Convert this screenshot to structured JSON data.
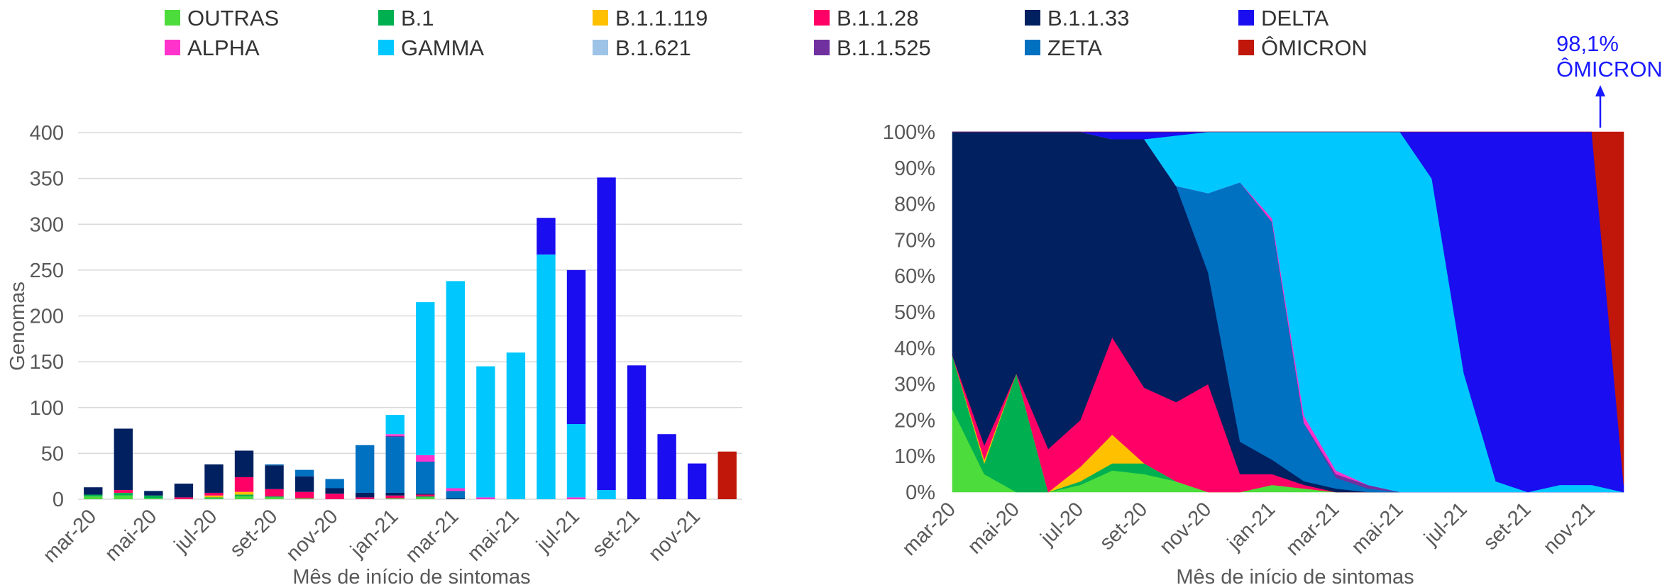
{
  "legend": [
    {
      "name": "OUTRAS",
      "color": "#4cdc3c"
    },
    {
      "name": "B.1",
      "color": "#00b050"
    },
    {
      "name": "B.1.1.119",
      "color": "#ffc000"
    },
    {
      "name": "B.1.1.28",
      "color": "#ff0066"
    },
    {
      "name": "B.1.1.33",
      "color": "#002060"
    },
    {
      "name": "DELTA",
      "color": "#1a0df0"
    },
    {
      "name": "ALPHA",
      "color": "#ff33cc"
    },
    {
      "name": "GAMMA",
      "color": "#00c8ff"
    },
    {
      "name": "B.1.621",
      "color": "#9dc3e6"
    },
    {
      "name": "B.1.1.525",
      "color": "#7030a0"
    },
    {
      "name": "ZETA",
      "color": "#0070c0"
    },
    {
      "name": "ÔMICRON",
      "color": "#c0170a"
    }
  ],
  "chart_data": [
    {
      "type": "bar",
      "stacked": true,
      "xlabel": "Mês de início de sintomas",
      "ylabel": "Genomas",
      "ylim": [
        0,
        400
      ],
      "yticks": [
        0,
        50,
        100,
        150,
        200,
        250,
        300,
        350,
        400
      ],
      "grid": true,
      "categories": [
        "mar-20",
        "abr-20",
        "mai-20",
        "jun-20",
        "jul-20",
        "ago-20",
        "set-20",
        "out-20",
        "nov-20",
        "dez-20",
        "jan-21",
        "fev-21",
        "mar-21",
        "abr-21",
        "mai-21",
        "jun-21",
        "jul-21",
        "ago-21",
        "set-21",
        "out-21",
        "nov-21",
        "dez-21"
      ],
      "xtick_labels": [
        "mar-20",
        "mai-20",
        "jul-20",
        "set-20",
        "nov-20",
        "jan-21",
        "mar-21",
        "mai-21",
        "jul-21",
        "set-21",
        "nov-21"
      ],
      "series": [
        {
          "name": "OUTRAS",
          "values": [
            3,
            4,
            1,
            0,
            1,
            3,
            2,
            1,
            0,
            0,
            1,
            2,
            0,
            0,
            0,
            0,
            0,
            0,
            0,
            0,
            0,
            0
          ]
        },
        {
          "name": "B.1",
          "values": [
            2,
            3,
            3,
            0,
            1,
            2,
            1,
            0,
            0,
            0,
            0,
            1,
            0,
            0,
            0,
            0,
            0,
            0,
            0,
            0,
            0,
            0
          ]
        },
        {
          "name": "B.1.1.119",
          "values": [
            0,
            0,
            0,
            0,
            2,
            3,
            0,
            0,
            0,
            0,
            0,
            0,
            0,
            0,
            0,
            0,
            0,
            0,
            0,
            0,
            0,
            0
          ]
        },
        {
          "name": "B.1.1.28",
          "values": [
            0,
            3,
            0,
            2,
            3,
            16,
            8,
            7,
            6,
            2,
            3,
            2,
            0,
            0,
            0,
            0,
            0,
            0,
            0,
            0,
            0,
            0
          ]
        },
        {
          "name": "B.1.1.33",
          "values": [
            8,
            67,
            5,
            15,
            31,
            29,
            26,
            17,
            6,
            5,
            3,
            1,
            1,
            0,
            0,
            0,
            0,
            0,
            0,
            0,
            0,
            0
          ]
        },
        {
          "name": "ZETA",
          "values": [
            0,
            0,
            0,
            0,
            0,
            0,
            1,
            7,
            10,
            52,
            61,
            35,
            8,
            0,
            0,
            0,
            0,
            0,
            0,
            0,
            0,
            0
          ]
        },
        {
          "name": "B.1.1.525",
          "values": [
            0,
            0,
            0,
            0,
            0,
            0,
            0,
            0,
            0,
            0,
            1,
            0,
            0,
            0,
            0,
            0,
            0,
            0,
            0,
            0,
            0,
            0
          ]
        },
        {
          "name": "ALPHA",
          "values": [
            0,
            0,
            0,
            0,
            0,
            0,
            0,
            0,
            0,
            0,
            2,
            7,
            3,
            2,
            0,
            0,
            2,
            0,
            0,
            0,
            0,
            0
          ]
        },
        {
          "name": "GAMMA",
          "values": [
            0,
            0,
            0,
            0,
            0,
            0,
            0,
            0,
            0,
            0,
            21,
            167,
            226,
            143,
            160,
            267,
            80,
            10,
            0,
            0,
            0,
            0
          ]
        },
        {
          "name": "B.1.621",
          "values": [
            0,
            0,
            0,
            0,
            0,
            0,
            0,
            0,
            0,
            0,
            0,
            0,
            0,
            0,
            0,
            0,
            0,
            0,
            0,
            0,
            0,
            0
          ]
        },
        {
          "name": "DELTA",
          "values": [
            0,
            0,
            0,
            0,
            0,
            0,
            0,
            0,
            0,
            0,
            0,
            0,
            0,
            0,
            0,
            40,
            168,
            341,
            146,
            71,
            39,
            0
          ]
        },
        {
          "name": "ÔMICRON",
          "values": [
            0,
            0,
            0,
            0,
            0,
            0,
            0,
            0,
            0,
            0,
            0,
            0,
            0,
            0,
            0,
            0,
            0,
            0,
            0,
            0,
            0,
            52
          ]
        }
      ]
    },
    {
      "type": "area",
      "stacked": true,
      "percent": true,
      "xlabel": "Mês de início de sintomas",
      "ylim": [
        0,
        100
      ],
      "ytick_labels": [
        "0%",
        "10%",
        "20%",
        "30%",
        "40%",
        "50%",
        "60%",
        "70%",
        "80%",
        "90%",
        "100%"
      ],
      "categories": [
        "mar-20",
        "abr-20",
        "mai-20",
        "jun-20",
        "jul-20",
        "ago-20",
        "set-20",
        "out-20",
        "nov-20",
        "dez-20",
        "jan-21",
        "fev-21",
        "mar-21",
        "abr-21",
        "mai-21",
        "jun-21",
        "jul-21",
        "ago-21",
        "set-21",
        "out-21",
        "nov-21",
        "dez-21"
      ],
      "xtick_labels": [
        "mar-20",
        "mai-20",
        "jul-20",
        "set-20",
        "nov-20",
        "jan-21",
        "mar-21",
        "mai-21",
        "jul-21",
        "set-21",
        "nov-21"
      ],
      "series": [
        {
          "name": "OUTRAS",
          "values": [
            23,
            5,
            0,
            0,
            2,
            6,
            5,
            3,
            0,
            0,
            2,
            1,
            0,
            0,
            0,
            0,
            0,
            0,
            0,
            0,
            0,
            0
          ]
        },
        {
          "name": "B.1",
          "values": [
            15,
            3,
            33,
            0,
            1,
            2,
            3,
            0,
            0,
            0,
            0,
            0,
            0,
            0,
            0,
            0,
            0,
            0,
            0,
            0,
            0,
            0
          ]
        },
        {
          "name": "B.1.1.119",
          "values": [
            0,
            1,
            0,
            0,
            4,
            8,
            0,
            0,
            0,
            0,
            0,
            0,
            0,
            0,
            0,
            0,
            0,
            0,
            0,
            0,
            0,
            0
          ]
        },
        {
          "name": "B.1.1.28",
          "values": [
            0,
            4,
            0,
            12,
            13,
            27,
            21,
            22,
            30,
            5,
            3,
            1,
            0,
            0,
            0,
            0,
            0,
            0,
            0,
            0,
            0,
            0
          ]
        },
        {
          "name": "B.1.1.33",
          "values": [
            62,
            87,
            67,
            88,
            80,
            55,
            69,
            60,
            31,
            9,
            4,
            1,
            1,
            0,
            0,
            0,
            0,
            0,
            0,
            0,
            0,
            0
          ]
        },
        {
          "name": "ZETA",
          "values": [
            0,
            0,
            0,
            0,
            0,
            0,
            0,
            0,
            22,
            72,
            66,
            16,
            3,
            1,
            0,
            0,
            0,
            0,
            0,
            0,
            0,
            0
          ]
        },
        {
          "name": "B.1.1.525",
          "values": [
            0,
            0,
            0,
            0,
            0,
            0,
            0,
            0,
            0,
            0,
            0,
            0,
            1,
            1,
            0,
            0,
            0,
            0,
            0,
            0,
            0,
            0
          ]
        },
        {
          "name": "ALPHA",
          "values": [
            0,
            0,
            0,
            0,
            0,
            0,
            0,
            0,
            0,
            0,
            1,
            2,
            1,
            0,
            0,
            0,
            0,
            0,
            0,
            0,
            0,
            0
          ]
        },
        {
          "name": "GAMMA",
          "values": [
            0,
            0,
            0,
            0,
            0,
            0,
            0,
            14,
            17,
            14,
            24,
            78,
            94,
            98,
            100,
            87,
            33,
            3,
            0,
            2,
            2,
            0
          ]
        },
        {
          "name": "B.1.621",
          "values": [
            0,
            0,
            0,
            0,
            0,
            0,
            0,
            0,
            0,
            0,
            0,
            0,
            0,
            0,
            0,
            0,
            0,
            0,
            0,
            0,
            0,
            0
          ]
        },
        {
          "name": "DELTA",
          "values": [
            0,
            0,
            0,
            0,
            0,
            2,
            2,
            1,
            0,
            0,
            0,
            0,
            0,
            0,
            0,
            13,
            67,
            97,
            100,
            98,
            98,
            2
          ]
        },
        {
          "name": "ÔMICRON",
          "values": [
            0,
            0,
            0,
            0,
            0,
            0,
            0,
            0,
            0,
            0,
            0,
            0,
            0,
            0,
            0,
            0,
            0,
            0,
            0,
            0,
            0,
            98
          ]
        }
      ],
      "annotation": {
        "lines": [
          "98,1%",
          "ÔMICRON"
        ],
        "category": "dez-21"
      }
    }
  ]
}
